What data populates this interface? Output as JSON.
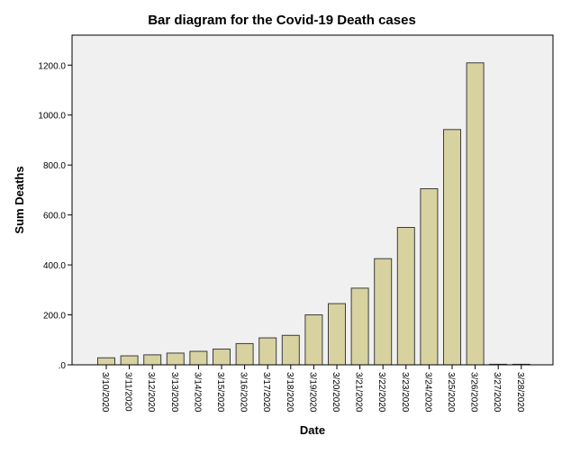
{
  "chart_data": {
    "type": "bar",
    "title": "Bar diagram for the Covid-19 Death cases",
    "xlabel": "Date",
    "ylabel": "Sum Deaths",
    "categories": [
      "3/10/2020",
      "3/11/2020",
      "3/12/2020",
      "3/13/2020",
      "3/14/2020",
      "3/15/2020",
      "3/16/2020",
      "3/17/2020",
      "3/18/2020",
      "3/19/2020",
      "3/20/2020",
      "3/21/2020",
      "3/22/2020",
      "3/23/2020",
      "3/24/2020",
      "3/25/2020",
      "3/26/2020",
      "3/27/2020",
      "3/28/2020"
    ],
    "values": [
      28,
      36,
      40,
      47,
      54,
      63,
      85,
      108,
      118,
      200,
      245,
      307,
      425,
      550,
      705,
      942,
      1209,
      0,
      0
    ],
    "ylim": [
      0,
      1320
    ],
    "yticks": [
      0,
      200,
      400,
      600,
      800,
      1000,
      1200
    ],
    "ytick_labels": [
      ".0",
      "200.0",
      "400.0",
      "600.0",
      "800.0",
      "1000.0",
      "1200.0"
    ],
    "grid": false,
    "legend": "none",
    "colors": {
      "bar_fill": "#d8d2a0",
      "bar_stroke": "#3c3c3c",
      "plot_background": "#f0f0f0",
      "axis": "#000000"
    }
  }
}
